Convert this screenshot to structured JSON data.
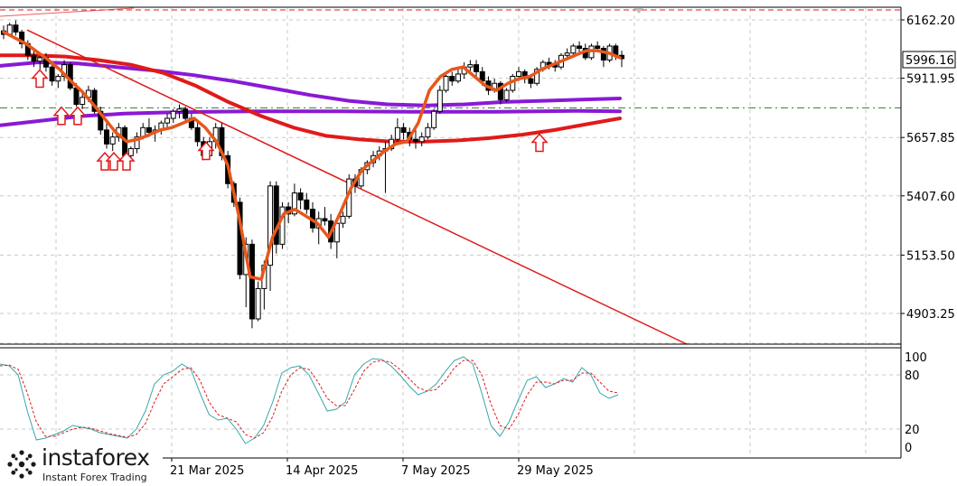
{
  "colors": {
    "background": "#ffffff",
    "grid": "#c8c8c8",
    "candle": "#000000",
    "ema_orange": "#e8571b",
    "ma_red": "#e01a1a",
    "ma_purple": "#8a19d6",
    "trendline": "#e01a1a",
    "stoch_main": "#3aa6a8",
    "stoch_signal": "#e01a1a",
    "arrow": "#e01a1a",
    "level_line": "#2e7d32"
  },
  "watermark": {
    "brand": "instaforex",
    "tagline": "Instant Forex Trading",
    "icon": "instaforex-logo-icon"
  },
  "price_axis": {
    "labels": [
      "6162.20",
      "5911.95",
      "5657.85",
      "5407.60",
      "5153.50",
      "4903.25"
    ],
    "current_price_label": "5996.16"
  },
  "stoch_axis": {
    "labels": [
      "100",
      "80",
      "20",
      "0"
    ]
  },
  "time_axis": {
    "labels": [
      "21 Mar 2025",
      "14 Apr 2025",
      "7 May 2025",
      "29 May 2025"
    ]
  },
  "chart_data": [
    {
      "type": "candlestick",
      "title": "",
      "y_range": [
        4840,
        6210
      ],
      "horizontal_levels": [
        6162.2,
        5785
      ],
      "candles": [
        [
          6115,
          6138,
          6080,
          6100
        ],
        [
          6100,
          6150,
          6090,
          6140
        ],
        [
          6140,
          6160,
          6095,
          6110
        ],
        [
          6110,
          6120,
          6040,
          6060
        ],
        [
          6060,
          6075,
          5990,
          6010
        ],
        [
          6010,
          6030,
          5960,
          5985
        ],
        [
          5985,
          6010,
          5950,
          6000
        ],
        [
          6000,
          6020,
          5940,
          5960
        ],
        [
          5960,
          5975,
          5880,
          5900
        ],
        [
          5900,
          5930,
          5870,
          5920
        ],
        [
          5920,
          5990,
          5900,
          5970
        ],
        [
          5970,
          5980,
          5860,
          5870
        ],
        [
          5870,
          5890,
          5790,
          5800
        ],
        [
          5800,
          5850,
          5780,
          5830
        ],
        [
          5830,
          5880,
          5810,
          5860
        ],
        [
          5860,
          5870,
          5760,
          5770
        ],
        [
          5770,
          5790,
          5670,
          5690
        ],
        [
          5690,
          5720,
          5610,
          5630
        ],
        [
          5630,
          5680,
          5600,
          5660
        ],
        [
          5660,
          5720,
          5640,
          5700
        ],
        [
          5700,
          5710,
          5560,
          5580
        ],
        [
          5580,
          5620,
          5560,
          5610
        ],
        [
          5610,
          5680,
          5590,
          5660
        ],
        [
          5660,
          5720,
          5650,
          5700
        ],
        [
          5700,
          5740,
          5660,
          5680
        ],
        [
          5680,
          5710,
          5640,
          5690
        ],
        [
          5690,
          5730,
          5670,
          5720
        ],
        [
          5720,
          5760,
          5690,
          5740
        ],
        [
          5740,
          5780,
          5720,
          5770
        ],
        [
          5770,
          5800,
          5740,
          5780
        ],
        [
          5780,
          5790,
          5720,
          5740
        ],
        [
          5740,
          5760,
          5690,
          5700
        ],
        [
          5700,
          5720,
          5620,
          5640
        ],
        [
          5640,
          5660,
          5560,
          5580
        ],
        [
          5580,
          5660,
          5570,
          5640
        ],
        [
          5640,
          5720,
          5610,
          5700
        ],
        [
          5700,
          5720,
          5560,
          5580
        ],
        [
          5580,
          5600,
          5440,
          5460
        ],
        [
          5460,
          5470,
          5360,
          5380
        ],
        [
          5380,
          5400,
          5050,
          5070
        ],
        [
          5070,
          5230,
          4930,
          5200
        ],
        [
          5200,
          5220,
          4840,
          4880
        ],
        [
          4880,
          5040,
          4870,
          5010
        ],
        [
          5010,
          5130,
          4920,
          5110
        ],
        [
          5110,
          5470,
          5000,
          5450
        ],
        [
          5450,
          5470,
          5160,
          5200
        ],
        [
          5200,
          5380,
          5180,
          5360
        ],
        [
          5360,
          5380,
          5290,
          5330
        ],
        [
          5330,
          5460,
          5320,
          5420
        ],
        [
          5420,
          5440,
          5350,
          5390
        ],
        [
          5390,
          5420,
          5330,
          5350
        ],
        [
          5350,
          5380,
          5250,
          5270
        ],
        [
          5270,
          5340,
          5200,
          5310
        ],
        [
          5310,
          5360,
          5280,
          5300
        ],
        [
          5300,
          5330,
          5180,
          5210
        ],
        [
          5210,
          5310,
          5140,
          5290
        ],
        [
          5290,
          5340,
          5270,
          5320
        ],
        [
          5320,
          5500,
          5310,
          5480
        ],
        [
          5480,
          5500,
          5420,
          5450
        ],
        [
          5450,
          5530,
          5440,
          5520
        ],
        [
          5520,
          5560,
          5500,
          5550
        ],
        [
          5550,
          5600,
          5530,
          5580
        ],
        [
          5580,
          5620,
          5560,
          5600
        ],
        [
          5600,
          5640,
          5420,
          5610
        ],
        [
          5610,
          5670,
          5600,
          5650
        ],
        [
          5650,
          5740,
          5640,
          5700
        ],
        [
          5700,
          5720,
          5650,
          5680
        ],
        [
          5680,
          5700,
          5620,
          5650
        ],
        [
          5650,
          5690,
          5610,
          5640
        ],
        [
          5640,
          5680,
          5620,
          5660
        ],
        [
          5660,
          5720,
          5650,
          5700
        ],
        [
          5700,
          5780,
          5690,
          5770
        ],
        [
          5770,
          5880,
          5760,
          5860
        ],
        [
          5860,
          5930,
          5850,
          5920
        ],
        [
          5920,
          5940,
          5880,
          5900
        ],
        [
          5900,
          5950,
          5890,
          5930
        ],
        [
          5930,
          5980,
          5910,
          5960
        ],
        [
          5960,
          5990,
          5940,
          5970
        ],
        [
          5970,
          5990,
          5920,
          5940
        ],
        [
          5940,
          5960,
          5880,
          5900
        ],
        [
          5900,
          5920,
          5840,
          5860
        ],
        [
          5860,
          5910,
          5850,
          5890
        ],
        [
          5890,
          5900,
          5800,
          5820
        ],
        [
          5820,
          5870,
          5810,
          5860
        ],
        [
          5860,
          5930,
          5850,
          5920
        ],
        [
          5920,
          5960,
          5900,
          5940
        ],
        [
          5940,
          5950,
          5890,
          5910
        ],
        [
          5910,
          5930,
          5870,
          5890
        ],
        [
          5890,
          5960,
          5880,
          5950
        ],
        [
          5950,
          5990,
          5940,
          5980
        ],
        [
          5980,
          6000,
          5950,
          5970
        ],
        [
          5970,
          5990,
          5940,
          5960
        ],
        [
          5960,
          6020,
          5950,
          6010
        ],
        [
          6010,
          6040,
          5990,
          6020
        ],
        [
          6020,
          6060,
          6000,
          6050
        ],
        [
          6050,
          6070,
          6020,
          6040
        ],
        [
          6040,
          6060,
          5990,
          6000
        ],
        [
          6000,
          6060,
          5990,
          6050
        ],
        [
          6050,
          6070,
          6030,
          6040
        ],
        [
          6040,
          6050,
          5960,
          5990
        ],
        [
          5990,
          6060,
          5980,
          6050
        ],
        [
          6050,
          6060,
          5990,
          6010
        ],
        [
          6010,
          6030,
          5960,
          5996
        ]
      ],
      "ema_orange": [
        6110,
        6085,
        6060,
        6025,
        5990,
        5950,
        5900,
        5855,
        5800,
        5740,
        5680,
        5640,
        5650,
        5670,
        5690,
        5700,
        5720,
        5740,
        5700,
        5640,
        5540,
        5320,
        5060,
        5050,
        5230,
        5330,
        5350,
        5320,
        5290,
        5230,
        5330,
        5440,
        5520,
        5560,
        5600,
        5630,
        5640,
        5720,
        5860,
        5920,
        5950,
        5960,
        5920,
        5880,
        5860,
        5890,
        5910,
        5920,
        5950,
        5970,
        5990,
        6010,
        6030,
        6030,
        6020,
        6000
      ],
      "ma_red": [
        6010,
        6010,
        6005,
        5990,
        5970,
        5935,
        5880,
        5810,
        5750,
        5700,
        5665,
        5650,
        5640,
        5640,
        5645,
        5655,
        5670,
        5690,
        5715,
        5740
      ],
      "ma_purple_upper": [
        5965,
        5980,
        5975,
        5960,
        5945,
        5925,
        5900,
        5870,
        5840,
        5815,
        5800,
        5795,
        5800,
        5810,
        5815,
        5820,
        5825
      ],
      "ma_purple_lower": [
        5710,
        5730,
        5750,
        5760,
        5765,
        5768,
        5770,
        5770,
        5770,
        5769,
        5768,
        5768,
        5768,
        5770,
        5772,
        5770
      ],
      "trendline": [
        [
          6150,
          0
        ],
        [
          4850,
          1
        ]
      ],
      "arrows_up": [
        5955,
        5795,
        5795,
        5600,
        5600,
        5600,
        5645,
        5680
      ]
    },
    {
      "type": "line",
      "title": "",
      "y_range": [
        0,
        100
      ],
      "levels": [
        20,
        80
      ],
      "series": [
        {
          "values": [
            92,
            90,
            80,
            40,
            8,
            10,
            14,
            18,
            24,
            22,
            20,
            16,
            14,
            12,
            10,
            20,
            40,
            70,
            80,
            84,
            92,
            86,
            60,
            36,
            30,
            32,
            20,
            4,
            10,
            24,
            50,
            82,
            88,
            90,
            80,
            60,
            40,
            42,
            50,
            80,
            92,
            98,
            97,
            90,
            80,
            68,
            58,
            62,
            70,
            84,
            96,
            100,
            92,
            60,
            24,
            12,
            28,
            52,
            74,
            78,
            66,
            70,
            76,
            72,
            88,
            80,
            60,
            54,
            58
          ]
        },
        {
          "values": [
            90,
            91,
            86,
            60,
            28,
            12,
            12,
            16,
            20,
            22,
            21,
            18,
            15,
            13,
            11,
            14,
            26,
            50,
            70,
            78,
            86,
            88,
            74,
            50,
            36,
            32,
            28,
            14,
            10,
            16,
            34,
            62,
            80,
            88,
            86,
            72,
            54,
            46,
            46,
            64,
            84,
            94,
            96,
            94,
            86,
            76,
            66,
            62,
            64,
            74,
            88,
            96,
            96,
            80,
            48,
            24,
            20,
            36,
            58,
            72,
            72,
            70,
            74,
            74,
            82,
            82,
            72,
            62,
            60
          ]
        }
      ]
    }
  ]
}
